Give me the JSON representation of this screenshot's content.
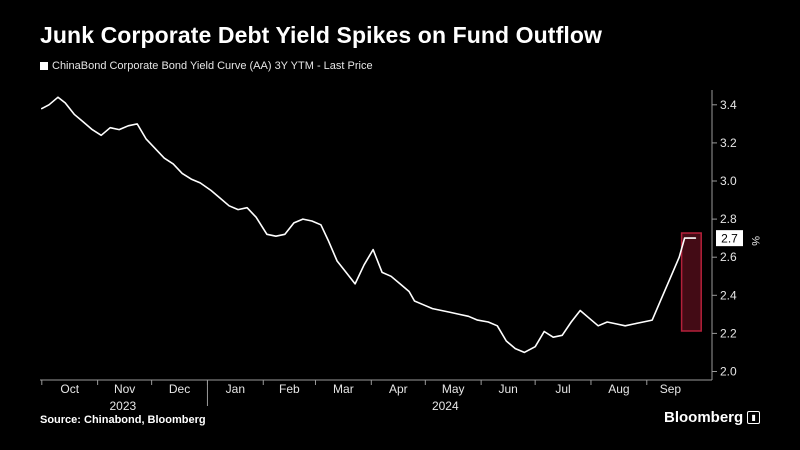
{
  "title": "Junk Corporate Debt Yield Spikes on Fund Outflow",
  "legend": "ChinaBond Corporate Bond Yield Curve (AA) 3Y YTM - Last Price",
  "source": "Source: Chinabond, Bloomberg",
  "brand": "Bloomberg",
  "colors": {
    "background": "#000000",
    "line": "#ffffff",
    "highlight_border": "#b4203a",
    "highlight_fill": "#5a0f1c",
    "last_price_box": "#ffffff",
    "last_price_text": "#000000"
  },
  "chart_data": {
    "type": "line",
    "series": [
      {
        "name": "ChinaBond Corporate Bond Yield Curve (AA) 3Y YTM - Last Price",
        "x": [
          "2023-10-01",
          "2023-10-05",
          "2023-10-10",
          "2023-10-14",
          "2023-10-19",
          "2023-10-24",
          "2023-10-29",
          "2023-11-03",
          "2023-11-08",
          "2023-11-13",
          "2023-11-18",
          "2023-11-23",
          "2023-11-28",
          "2023-12-03",
          "2023-12-08",
          "2023-12-13",
          "2023-12-18",
          "2023-12-23",
          "2023-12-28",
          "2024-01-03",
          "2024-01-08",
          "2024-01-13",
          "2024-01-18",
          "2024-01-23",
          "2024-01-28",
          "2024-02-03",
          "2024-02-08",
          "2024-02-13",
          "2024-02-18",
          "2024-02-23",
          "2024-02-28",
          "2024-03-04",
          "2024-03-08",
          "2024-03-13",
          "2024-03-18",
          "2024-03-23",
          "2024-03-28",
          "2024-04-02",
          "2024-04-07",
          "2024-04-12",
          "2024-04-17",
          "2024-04-22",
          "2024-04-25",
          "2024-04-30",
          "2024-05-05",
          "2024-05-10",
          "2024-05-15",
          "2024-05-20",
          "2024-05-25",
          "2024-05-30",
          "2024-06-05",
          "2024-06-10",
          "2024-06-15",
          "2024-06-20",
          "2024-06-25",
          "2024-07-01",
          "2024-07-06",
          "2024-07-11",
          "2024-07-16",
          "2024-07-21",
          "2024-07-26",
          "2024-07-31",
          "2024-08-05",
          "2024-08-10",
          "2024-08-15",
          "2024-08-20",
          "2024-08-25",
          "2024-08-30",
          "2024-09-04",
          "2024-09-09",
          "2024-09-14",
          "2024-09-19",
          "2024-09-22",
          "2024-09-25",
          "2024-09-28"
        ],
        "y": [
          3.38,
          3.4,
          3.44,
          3.41,
          3.35,
          3.31,
          3.27,
          3.24,
          3.28,
          3.27,
          3.29,
          3.3,
          3.22,
          3.17,
          3.12,
          3.09,
          3.04,
          3.01,
          2.99,
          2.95,
          2.91,
          2.87,
          2.85,
          2.86,
          2.81,
          2.72,
          2.71,
          2.72,
          2.78,
          2.8,
          2.79,
          2.77,
          2.69,
          2.58,
          2.52,
          2.46,
          2.56,
          2.64,
          2.52,
          2.5,
          2.46,
          2.42,
          2.37,
          2.35,
          2.33,
          2.32,
          2.31,
          2.3,
          2.29,
          2.27,
          2.26,
          2.24,
          2.16,
          2.12,
          2.1,
          2.13,
          2.21,
          2.18,
          2.19,
          2.26,
          2.32,
          2.28,
          2.24,
          2.26,
          2.25,
          2.24,
          2.25,
          2.26,
          2.27,
          2.38,
          2.49,
          2.6,
          2.7,
          2.7,
          2.7
        ]
      }
    ],
    "x_month_labels": [
      "Oct",
      "Nov",
      "Dec",
      "Jan",
      "Feb",
      "Mar",
      "Apr",
      "May",
      "Jun",
      "Jul",
      "Aug",
      "Sep"
    ],
    "x_year_labels": [
      "2023",
      "2024"
    ],
    "y_ticks": [
      2.0,
      2.2,
      2.4,
      2.6,
      2.8,
      3.0,
      3.2,
      3.4
    ],
    "ylim": [
      2.0,
      3.5
    ],
    "y_unit": "%",
    "last_price_label": "2.7",
    "highlight_range": [
      "2024-09-22",
      "2024-09-29"
    ],
    "grid": false,
    "y_axis_side": "right"
  }
}
